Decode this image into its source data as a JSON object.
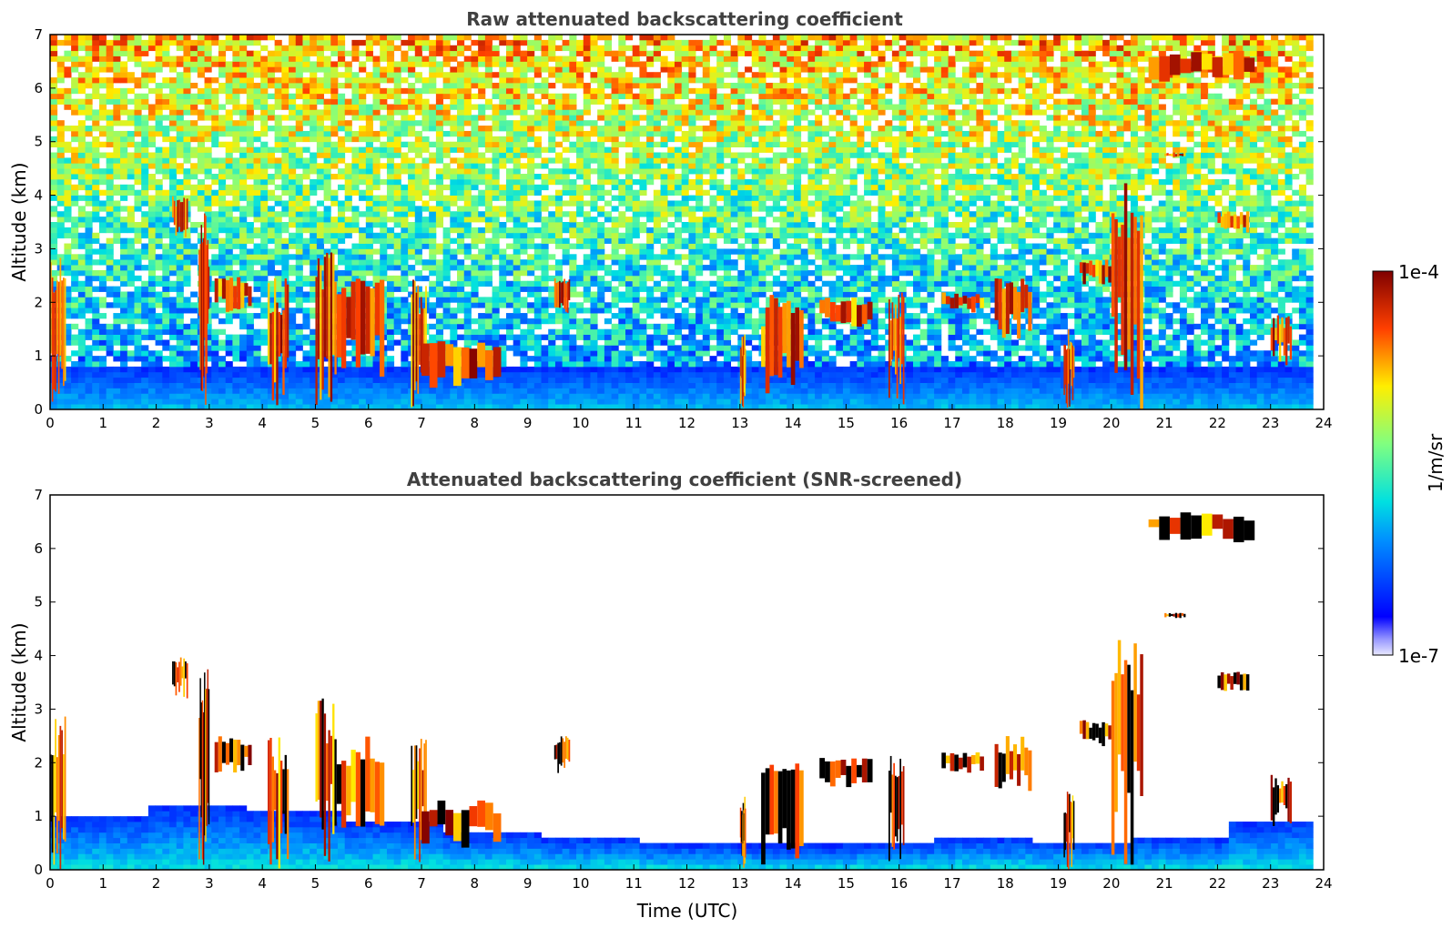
{
  "chart_data": [
    {
      "type": "heatmap",
      "title": "Raw attenuated backscattering coefficient",
      "xlabel": "",
      "ylabel": "Altitude (km)",
      "xlim": [
        0,
        24
      ],
      "ylim": [
        0,
        7
      ],
      "xticks": [
        "0",
        "1",
        "2",
        "3",
        "4",
        "5",
        "6",
        "7",
        "8",
        "9",
        "10",
        "11",
        "12",
        "13",
        "14",
        "15",
        "16",
        "17",
        "18",
        "19",
        "20",
        "21",
        "22",
        "23",
        "24"
      ],
      "yticks": [
        "0",
        "1",
        "2",
        "3",
        "4",
        "5",
        "6",
        "7"
      ],
      "colormap": "jet",
      "description_layers": {
        "surface_layer_top_km": 0.8,
        "noise_increases_with_altitude": true
      },
      "cloud_features": [
        {
          "t": [
            0.0,
            0.3
          ],
          "alt": [
            0.0,
            2.9
          ]
        },
        {
          "t": [
            2.3,
            2.6
          ],
          "alt": [
            3.2,
            4.0
          ]
        },
        {
          "t": [
            2.8,
            3.0
          ],
          "alt": [
            0.0,
            3.8
          ]
        },
        {
          "t": [
            3.1,
            3.8
          ],
          "alt": [
            1.8,
            2.5
          ]
        },
        {
          "t": [
            4.1,
            4.5
          ],
          "alt": [
            0.0,
            2.5
          ]
        },
        {
          "t": [
            5.0,
            5.4
          ],
          "alt": [
            0.0,
            3.2
          ]
        },
        {
          "t": [
            5.4,
            6.3
          ],
          "alt": [
            0.6,
            2.5
          ]
        },
        {
          "t": [
            6.8,
            7.1
          ],
          "alt": [
            0.0,
            2.5
          ]
        },
        {
          "t": [
            7.0,
            8.5
          ],
          "alt": [
            0.4,
            1.3
          ]
        },
        {
          "t": [
            9.5,
            9.8
          ],
          "alt": [
            1.8,
            2.5
          ]
        },
        {
          "t": [
            13.0,
            13.1
          ],
          "alt": [
            0.0,
            1.4
          ]
        },
        {
          "t": [
            13.4,
            14.2
          ],
          "alt": [
            0.0,
            2.2
          ]
        },
        {
          "t": [
            14.5,
            15.5
          ],
          "alt": [
            1.5,
            2.1
          ]
        },
        {
          "t": [
            15.8,
            16.1
          ],
          "alt": [
            0.0,
            2.2
          ]
        },
        {
          "t": [
            16.8,
            17.6
          ],
          "alt": [
            1.8,
            2.2
          ]
        },
        {
          "t": [
            17.8,
            18.5
          ],
          "alt": [
            1.3,
            2.5
          ]
        },
        {
          "t": [
            19.1,
            19.3
          ],
          "alt": [
            0.0,
            1.5
          ]
        },
        {
          "t": [
            19.4,
            20.0
          ],
          "alt": [
            2.3,
            2.8
          ]
        },
        {
          "t": [
            20.0,
            20.6
          ],
          "alt": [
            0.0,
            4.4
          ]
        },
        {
          "t": [
            20.7,
            22.7
          ],
          "alt": [
            6.1,
            6.7
          ]
        },
        {
          "t": [
            21.0,
            21.4
          ],
          "alt": [
            4.7,
            4.8
          ]
        },
        {
          "t": [
            22.0,
            22.6
          ],
          "alt": [
            3.3,
            3.7
          ]
        },
        {
          "t": [
            23.0,
            23.4
          ],
          "alt": [
            0.8,
            1.8
          ]
        }
      ]
    },
    {
      "type": "heatmap",
      "title": "Attenuated backscattering coefficient (SNR-screened)",
      "xlabel": "Time (UTC)",
      "ylabel": "Altitude (km)",
      "xlim": [
        0,
        24
      ],
      "ylim": [
        0,
        7
      ],
      "xticks": [
        "0",
        "1",
        "2",
        "3",
        "4",
        "5",
        "6",
        "7",
        "8",
        "9",
        "10",
        "11",
        "12",
        "13",
        "14",
        "15",
        "16",
        "17",
        "18",
        "19",
        "20",
        "21",
        "22",
        "23",
        "24"
      ],
      "yticks": [
        "0",
        "1",
        "2",
        "3",
        "4",
        "5",
        "6",
        "7"
      ],
      "colormap": "jet",
      "description_layers": {
        "boundary_layer_top_km": [
          1.0,
          1.2,
          1.1,
          0.9,
          0.7,
          0.6,
          0.5,
          0.45,
          0.5,
          0.6,
          0.55,
          0.6,
          0.9
        ]
      }
    }
  ],
  "colorbar": {
    "label": "1/m/sr",
    "max_label": "1e-4",
    "min_label": "1e-7",
    "scale": "log",
    "range": [
      1e-07,
      0.0001
    ]
  }
}
